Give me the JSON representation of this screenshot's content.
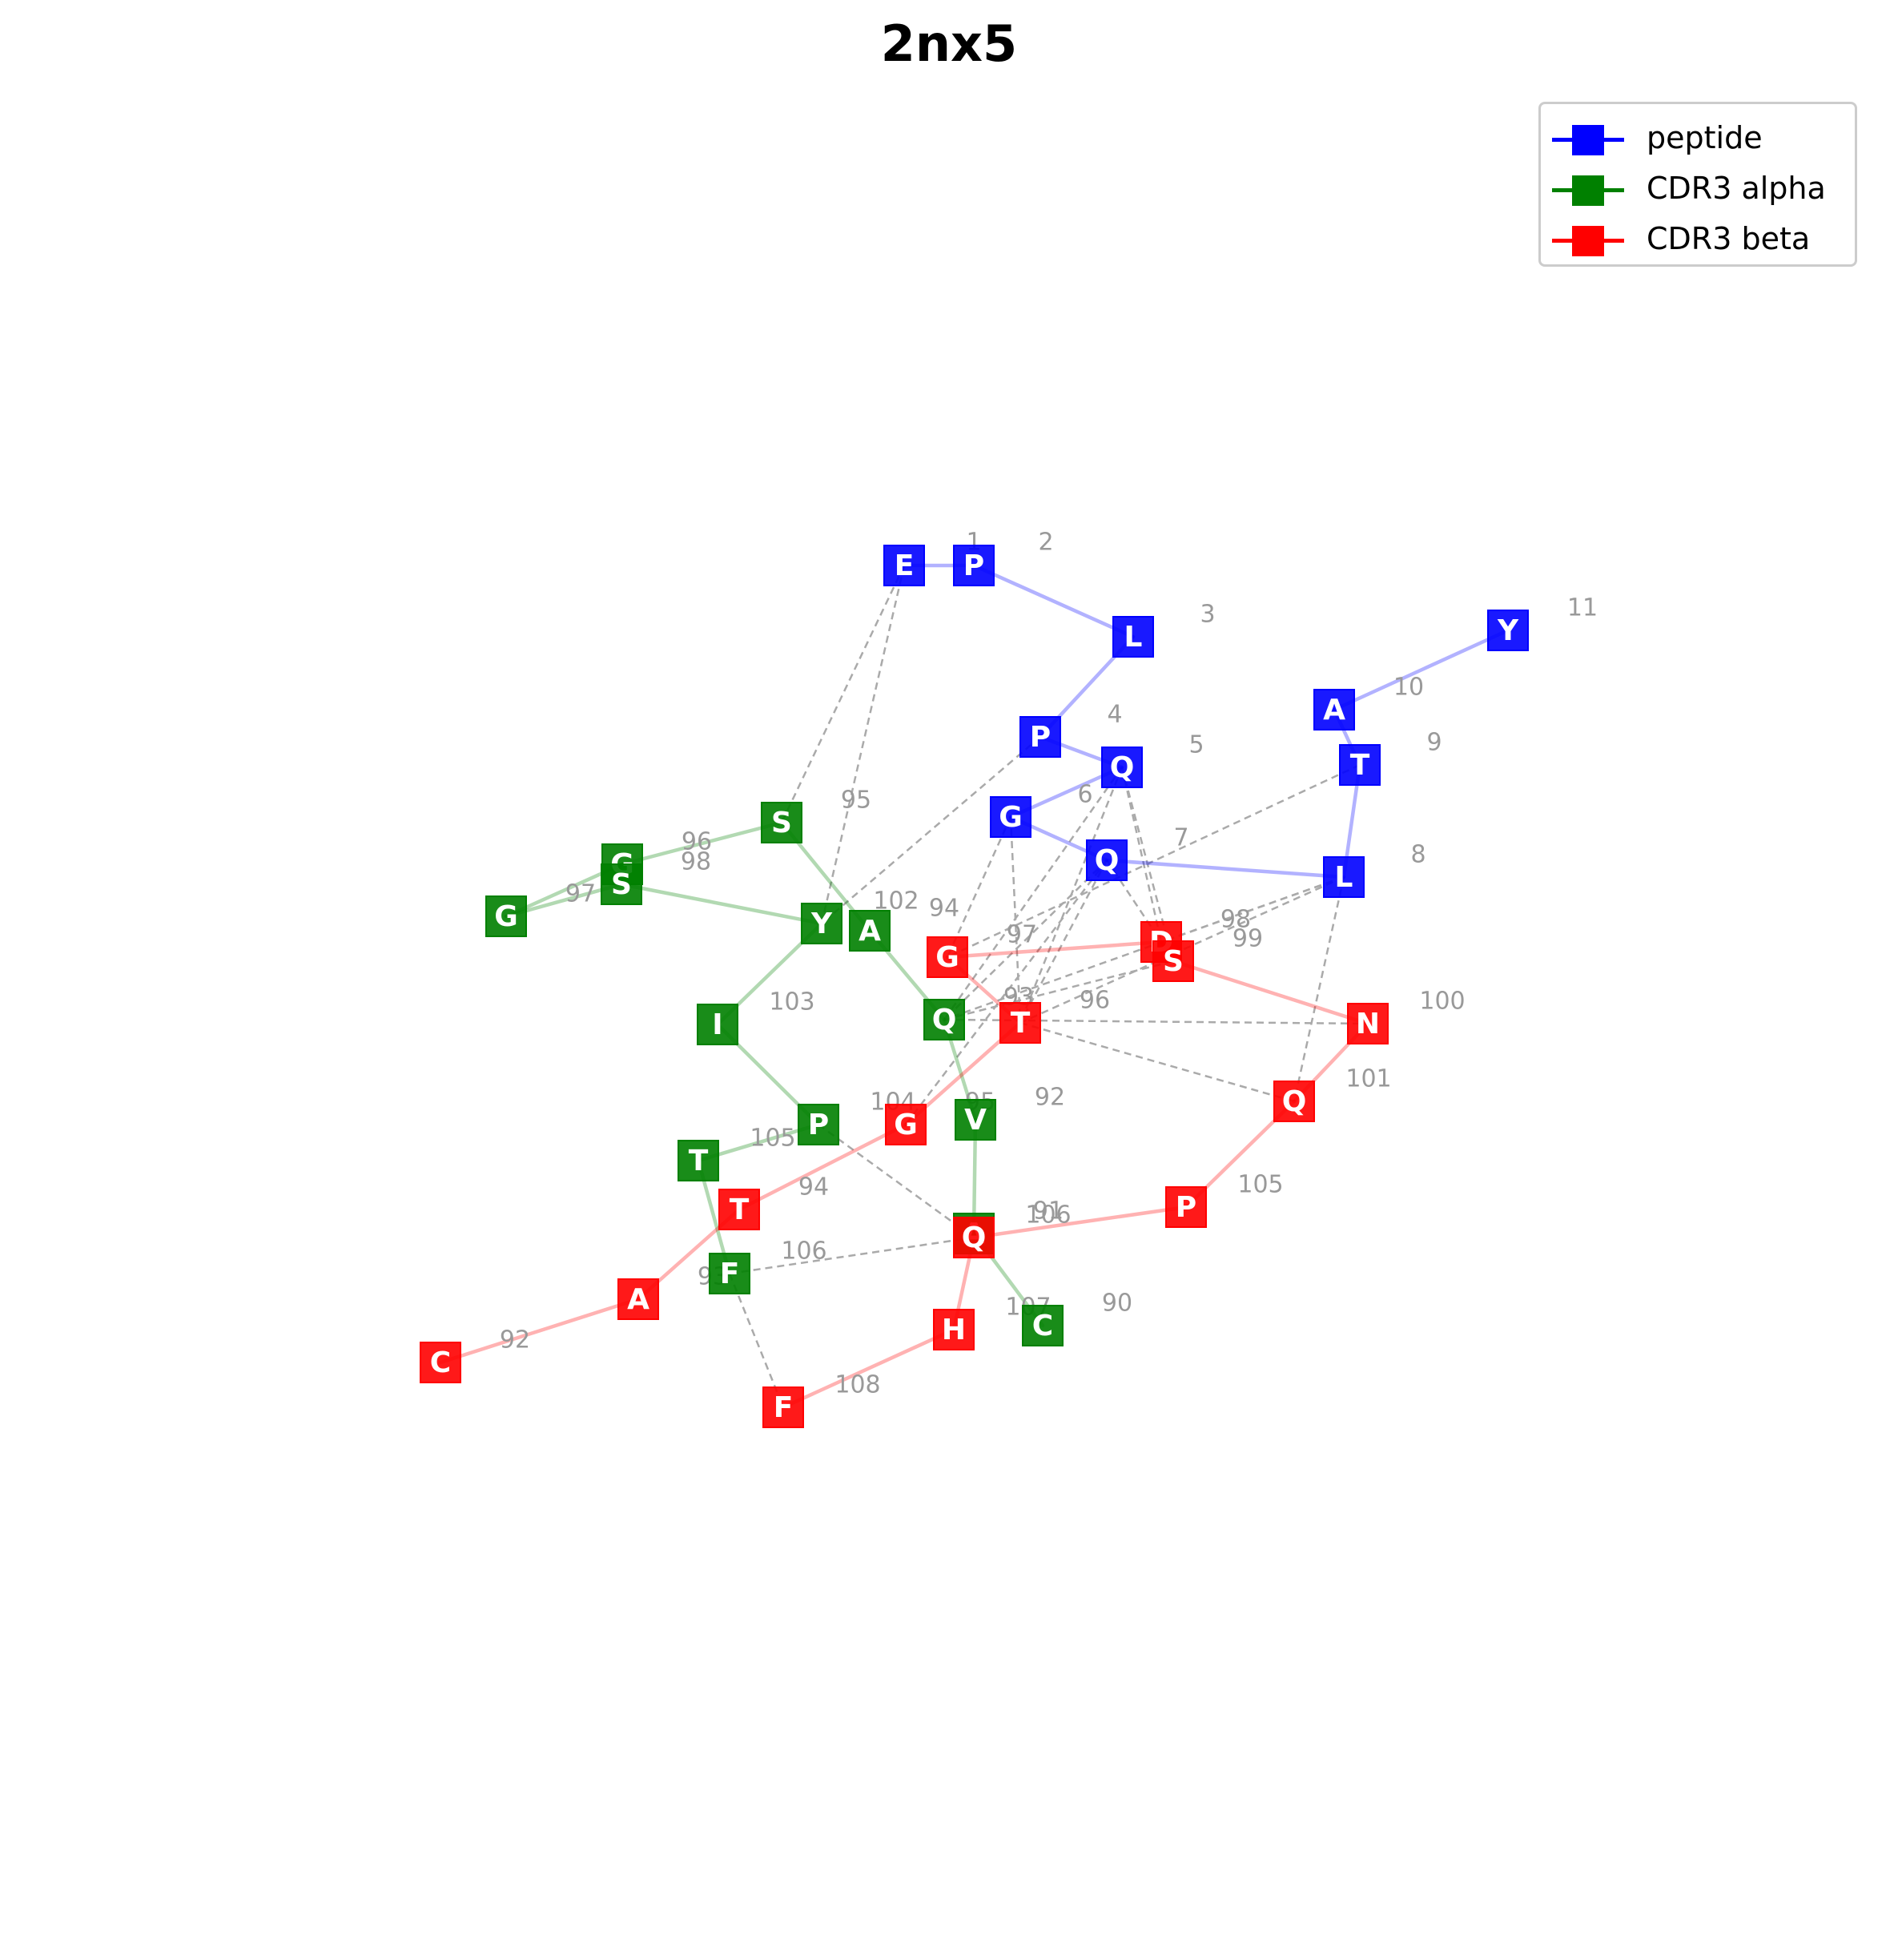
{
  "title": "2nx5",
  "legend": [
    {
      "label": "peptide",
      "color": "#0000ff"
    },
    {
      "label": "CDR3 alpha",
      "color": "#008000"
    },
    {
      "label": "CDR3 beta",
      "color": "#ff0000"
    }
  ],
  "colors": {
    "peptide": "#0000ff",
    "cdr3_alpha": "#008000",
    "cdr3_beta": "#ff0000",
    "contact": "#aaaaaa",
    "number": "#999999"
  },
  "chains": {
    "peptide": [
      {
        "id": "p1",
        "residue": "E",
        "number": "1"
      },
      {
        "id": "p2",
        "residue": "P",
        "number": "2"
      },
      {
        "id": "p3",
        "residue": "L",
        "number": "3"
      },
      {
        "id": "p4",
        "residue": "P",
        "number": "4"
      },
      {
        "id": "p5",
        "residue": "Q",
        "number": "5"
      },
      {
        "id": "p6",
        "residue": "G",
        "number": "6"
      },
      {
        "id": "p7",
        "residue": "Q",
        "number": "7"
      },
      {
        "id": "p8",
        "residue": "L",
        "number": "8"
      },
      {
        "id": "p9",
        "residue": "T",
        "number": "9"
      },
      {
        "id": "p10",
        "residue": "A",
        "number": "10"
      },
      {
        "id": "p11",
        "residue": "Y",
        "number": "11"
      }
    ],
    "cdr3_alpha": [
      {
        "id": "a90",
        "residue": "C",
        "number": "90"
      },
      {
        "id": "a91",
        "residue": "A",
        "number": "91"
      },
      {
        "id": "a92",
        "residue": "V",
        "number": "92"
      },
      {
        "id": "a93",
        "residue": "Q",
        "number": "93"
      },
      {
        "id": "a94",
        "residue": "A",
        "number": "94"
      },
      {
        "id": "a95",
        "residue": "S",
        "number": "95"
      },
      {
        "id": "a96",
        "residue": "G",
        "number": "96"
      },
      {
        "id": "a97",
        "residue": "G",
        "number": "97"
      },
      {
        "id": "a98",
        "residue": "S",
        "number": "98"
      },
      {
        "id": "a102",
        "residue": "Y",
        "number": "102"
      },
      {
        "id": "a103",
        "residue": "I",
        "number": "103"
      },
      {
        "id": "a104",
        "residue": "P",
        "number": "104"
      },
      {
        "id": "a105",
        "residue": "T",
        "number": "105"
      },
      {
        "id": "a106",
        "residue": "F",
        "number": "106"
      }
    ],
    "cdr3_beta": [
      {
        "id": "b92",
        "residue": "C",
        "number": "92"
      },
      {
        "id": "b93",
        "residue": "A",
        "number": "93"
      },
      {
        "id": "b94",
        "residue": "T",
        "number": "94"
      },
      {
        "id": "b95",
        "residue": "G",
        "number": "95"
      },
      {
        "id": "b96",
        "residue": "T",
        "number": "96"
      },
      {
        "id": "b97",
        "residue": "G",
        "number": "97"
      },
      {
        "id": "b98",
        "residue": "D",
        "number": "98"
      },
      {
        "id": "b99",
        "residue": "S",
        "number": "99"
      },
      {
        "id": "b100",
        "residue": "N",
        "number": "100"
      },
      {
        "id": "b101",
        "residue": "Q",
        "number": "101"
      },
      {
        "id": "b105",
        "residue": "P",
        "number": "105"
      },
      {
        "id": "b106",
        "residue": "Q",
        "number": "106"
      },
      {
        "id": "b107",
        "residue": "H",
        "number": "107"
      },
      {
        "id": "b108",
        "residue": "F",
        "number": "108"
      }
    ]
  },
  "backbone_edges": {
    "peptide": [
      [
        "p1",
        "p2"
      ],
      [
        "p2",
        "p3"
      ],
      [
        "p3",
        "p4"
      ],
      [
        "p4",
        "p5"
      ],
      [
        "p5",
        "p6"
      ],
      [
        "p6",
        "p7"
      ],
      [
        "p7",
        "p8"
      ],
      [
        "p8",
        "p9"
      ],
      [
        "p9",
        "p10"
      ],
      [
        "p10",
        "p11"
      ]
    ],
    "cdr3_alpha": [
      [
        "a90",
        "a91"
      ],
      [
        "a91",
        "a92"
      ],
      [
        "a92",
        "a93"
      ],
      [
        "a93",
        "a94"
      ],
      [
        "a94",
        "a95"
      ],
      [
        "a95",
        "a96"
      ],
      [
        "a96",
        "a97"
      ],
      [
        "a97",
        "a98"
      ],
      [
        "a98",
        "a102"
      ],
      [
        "a102",
        "a103"
      ],
      [
        "a103",
        "a104"
      ],
      [
        "a104",
        "a105"
      ],
      [
        "a105",
        "a106"
      ]
    ],
    "cdr3_beta": [
      [
        "b92",
        "b93"
      ],
      [
        "b93",
        "b94"
      ],
      [
        "b94",
        "b95"
      ],
      [
        "b95",
        "b96"
      ],
      [
        "b96",
        "b97"
      ],
      [
        "b97",
        "b98"
      ],
      [
        "b98",
        "b99"
      ],
      [
        "b99",
        "b100"
      ],
      [
        "b100",
        "b101"
      ],
      [
        "b101",
        "b105"
      ],
      [
        "b105",
        "b106"
      ],
      [
        "b106",
        "b107"
      ],
      [
        "b107",
        "b108"
      ]
    ]
  },
  "contact_edges": [
    [
      "p1",
      "a95"
    ],
    [
      "p1",
      "a102"
    ],
    [
      "p4",
      "a102"
    ],
    [
      "p5",
      "a93"
    ],
    [
      "p5",
      "b98"
    ],
    [
      "p5",
      "b96"
    ],
    [
      "p6",
      "b97"
    ],
    [
      "p6",
      "b96"
    ],
    [
      "p7",
      "b96"
    ],
    [
      "p7",
      "b95"
    ],
    [
      "p7",
      "b98"
    ],
    [
      "p7",
      "a93"
    ],
    [
      "p8",
      "b101"
    ],
    [
      "p8",
      "b98"
    ],
    [
      "p8",
      "b96"
    ],
    [
      "p8",
      "a93"
    ],
    [
      "p9",
      "b97"
    ],
    [
      "a93",
      "b100"
    ],
    [
      "a93",
      "b99"
    ],
    [
      "b96",
      "b101"
    ],
    [
      "a104",
      "b106"
    ],
    [
      "a106",
      "b106"
    ],
    [
      "a106",
      "b108"
    ],
    [
      "p5",
      "b99"
    ]
  ]
}
